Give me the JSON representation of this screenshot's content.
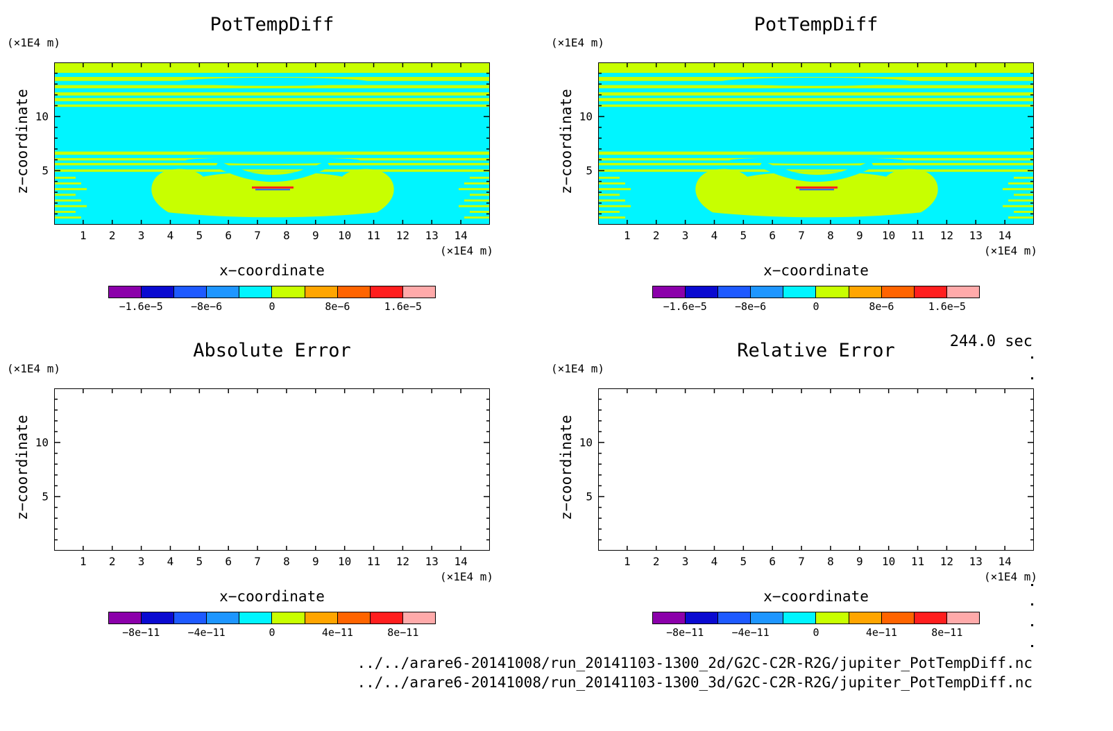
{
  "panels": [
    {
      "title": "PotTempDiff",
      "ylabel": "z−coordinate",
      "xlabel": "x−coordinate",
      "yunit": "(×1E4 m)",
      "xunit": "(×1E4 m)",
      "xticks": [
        "1",
        "2",
        "3",
        "4",
        "5",
        "6",
        "7",
        "8",
        "9",
        "10",
        "11",
        "12",
        "13",
        "14"
      ],
      "yticks": [
        "5",
        "10"
      ],
      "colorbar_labels": [
        "−1.6e−5",
        "−8e−6",
        "0",
        "8e−6",
        "1.6e−5"
      ],
      "filled": true
    },
    {
      "title": "PotTempDiff",
      "ylabel": "z−coordinate",
      "xlabel": "x−coordinate",
      "yunit": "(×1E4 m)",
      "xunit": "(×1E4 m)",
      "xticks": [
        "1",
        "2",
        "3",
        "4",
        "5",
        "6",
        "7",
        "8",
        "9",
        "10",
        "11",
        "12",
        "13",
        "14"
      ],
      "yticks": [
        "5",
        "10"
      ],
      "colorbar_labels": [
        "−1.6e−5",
        "−8e−6",
        "0",
        "8e−6",
        "1.6e−5"
      ],
      "filled": true
    },
    {
      "title": "Absolute Error",
      "ylabel": "z−coordinate",
      "xlabel": "x−coordinate",
      "yunit": "(×1E4 m)",
      "xunit": "(×1E4 m)",
      "xticks": [
        "1",
        "2",
        "3",
        "4",
        "5",
        "6",
        "7",
        "8",
        "9",
        "10",
        "11",
        "12",
        "13",
        "14"
      ],
      "yticks": [
        "5",
        "10"
      ],
      "colorbar_labels": [
        "−8e−11",
        "−4e−11",
        "0",
        "4e−11",
        "8e−11"
      ],
      "filled": false
    },
    {
      "title": "Relative Error",
      "ylabel": "z−coordinate",
      "xlabel": "x−coordinate",
      "yunit": "(×1E4 m)",
      "xunit": "(×1E4 m)",
      "xticks": [
        "1",
        "2",
        "3",
        "4",
        "5",
        "6",
        "7",
        "8",
        "9",
        "10",
        "11",
        "12",
        "13",
        "14"
      ],
      "yticks": [
        "5",
        "10"
      ],
      "colorbar_labels": [
        "−8e−11",
        "−4e−11",
        "0",
        "4e−11",
        "8e−11"
      ],
      "filled": false
    }
  ],
  "colorbar_colors": [
    "#8b00aa",
    "#0a0ad0",
    "#1e5aff",
    "#1e96ff",
    "#00f5ff",
    "#c8ff00",
    "#ffa500",
    "#ff6400",
    "#ff1e1e",
    "#ffaaaa"
  ],
  "time_label": "244.0 sec",
  "footer_lines": [
    "../../arare6-20141008/run_20141103-1300_2d/G2C-C2R-R2G/jupiter_PotTempDiff.nc",
    "../../arare6-20141008/run_20141103-1300_3d/G2C-C2R-R2G/jupiter_PotTempDiff.nc"
  ],
  "chart_data": [
    {
      "type": "heatmap",
      "title": "PotTempDiff",
      "xlabel": "x−coordinate",
      "ylabel": "z−coordinate",
      "xlim": [
        0,
        15
      ],
      "ylim": [
        0,
        15
      ],
      "colorbar": {
        "labels": [
          "−1.6e−5",
          "−8e−6",
          "0",
          "8e−6",
          "1.6e−5"
        ],
        "levels": 10
      }
    },
    {
      "type": "heatmap",
      "title": "PotTempDiff",
      "xlabel": "x−coordinate",
      "ylabel": "z−coordinate",
      "xlim": [
        0,
        15
      ],
      "ylim": [
        0,
        15
      ],
      "colorbar": {
        "labels": [
          "−1.6e−5",
          "−8e−6",
          "0",
          "8e−6",
          "1.6e−5"
        ],
        "levels": 10
      }
    },
    {
      "type": "heatmap",
      "title": "Absolute Error",
      "xlabel": "x−coordinate",
      "ylabel": "z−coordinate",
      "xlim": [
        0,
        15
      ],
      "ylim": [
        0,
        15
      ],
      "colorbar": {
        "labels": [
          "−8e−11",
          "−4e−11",
          "0",
          "4e−11",
          "8e−11"
        ],
        "levels": 10
      }
    },
    {
      "type": "heatmap",
      "title": "Relative Error",
      "xlabel": "x−coordinate",
      "ylabel": "z−coordinate",
      "xlim": [
        0,
        15
      ],
      "ylim": [
        0,
        15
      ],
      "colorbar": {
        "labels": [
          "−8e−11",
          "−4e−11",
          "0",
          "4e−11",
          "8e−11"
        ],
        "levels": 10
      }
    }
  ]
}
